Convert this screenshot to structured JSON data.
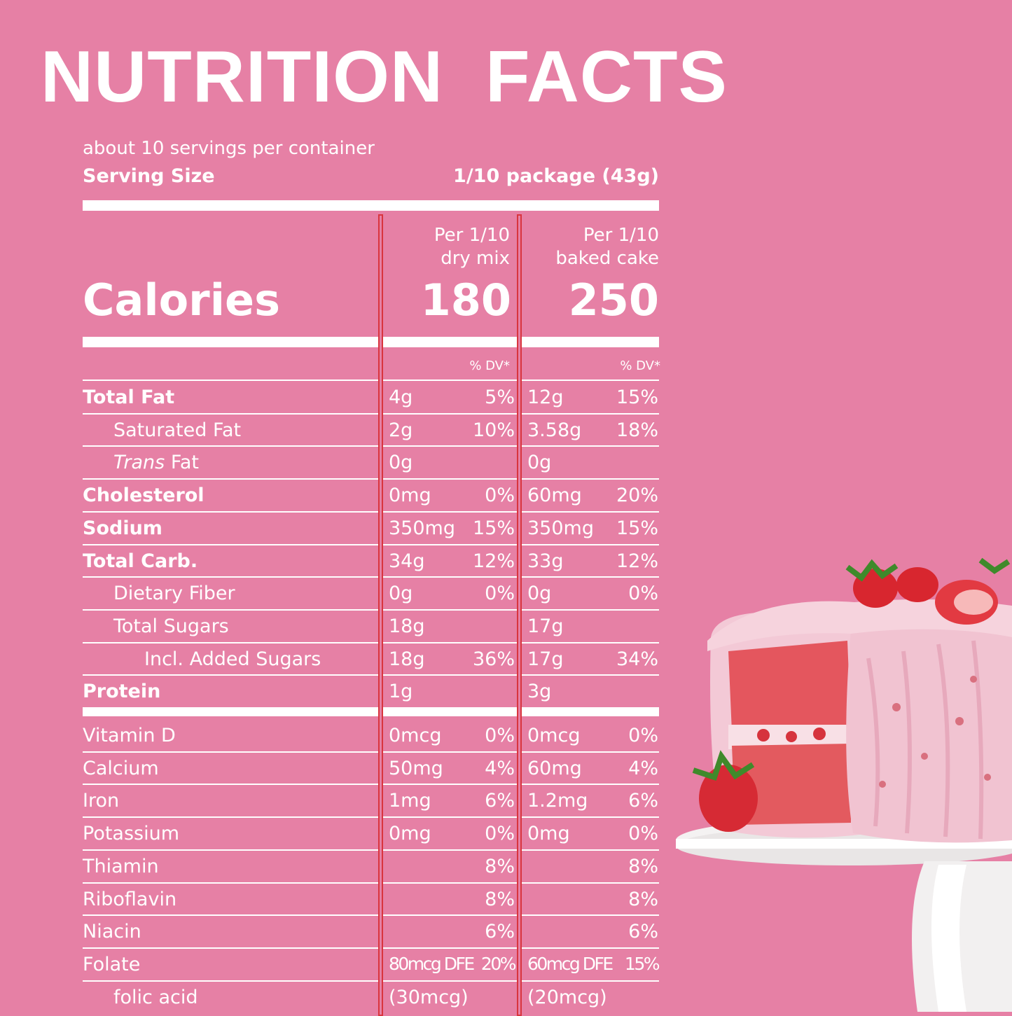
{
  "title": "NUTRITION  FACTS",
  "servings_per_container": "about 10 servings per container",
  "serving_size": {
    "label": "Serving Size",
    "value": "1/10 package (43g)"
  },
  "columns": [
    {
      "line1": "Per 1/10",
      "line2": "dry mix",
      "calories": "180"
    },
    {
      "line1": "Per 1/10",
      "line2": "baked cake",
      "calories": "250"
    }
  ],
  "calories_label": "Calories",
  "dv_header": "% DV*",
  "nutrients": [
    {
      "label": "Total Fat",
      "bold": true,
      "indent": 0,
      "v1": "4g",
      "p1": "5%",
      "v2": "12g",
      "p2": "15%"
    },
    {
      "label": "Saturated Fat",
      "bold": false,
      "indent": 1,
      "v1": "2g",
      "p1": "10%",
      "v2": "3.58g",
      "p2": "18%"
    },
    {
      "label_em": "Trans",
      "label": " Fat",
      "bold": false,
      "indent": 1,
      "v1": "0g",
      "p1": "",
      "v2": "0g",
      "p2": ""
    },
    {
      "label": "Cholesterol",
      "bold": true,
      "indent": 0,
      "v1": "0mg",
      "p1": "0%",
      "v2": "60mg",
      "p2": "20%"
    },
    {
      "label": "Sodium",
      "bold": true,
      "indent": 0,
      "v1": "350mg",
      "p1": "15%",
      "v2": "350mg",
      "p2": "15%"
    },
    {
      "label": "Total Carb.",
      "bold": true,
      "indent": 0,
      "v1": "34g",
      "p1": "12%",
      "v2": "33g",
      "p2": "12%"
    },
    {
      "label": "Dietary Fiber",
      "bold": false,
      "indent": 1,
      "v1": "0g",
      "p1": "0%",
      "v2": "0g",
      "p2": "0%"
    },
    {
      "label": "Total Sugars",
      "bold": false,
      "indent": 1,
      "v1": "18g",
      "p1": "",
      "v2": "17g",
      "p2": ""
    },
    {
      "label": "Incl. Added Sugars",
      "bold": false,
      "indent": 2,
      "v1": "18g",
      "p1": "36%",
      "v2": "17g",
      "p2": "34%"
    },
    {
      "label": "Protein",
      "bold": true,
      "indent": 0,
      "v1": "1g",
      "p1": "",
      "v2": "3g",
      "p2": ""
    }
  ],
  "vitamins": [
    {
      "label": "Vitamin D",
      "v1": "0mcg",
      "p1": "0%",
      "v2": "0mcg",
      "p2": "0%"
    },
    {
      "label": "Calcium",
      "v1": "50mg",
      "p1": "4%",
      "v2": "60mg",
      "p2": "4%"
    },
    {
      "label": "Iron",
      "v1": "1mg",
      "p1": "6%",
      "v2": "1.2mg",
      "p2": "6%"
    },
    {
      "label": "Potassium",
      "v1": "0mg",
      "p1": "0%",
      "v2": "0mg",
      "p2": "0%"
    },
    {
      "label": "Thiamin",
      "v1": "",
      "p1": "8%",
      "v2": "",
      "p2": "8%"
    },
    {
      "label": "Riboflavin",
      "v1": "",
      "p1": "8%",
      "v2": "",
      "p2": "8%"
    },
    {
      "label": "Niacin",
      "v1": "",
      "p1": "6%",
      "v2": "",
      "p2": "6%"
    },
    {
      "label": "Folate",
      "v1": "80mcg DFE",
      "p1": "20%",
      "v2": "60mcg DFE",
      "p2": "15%",
      "condensed": true
    },
    {
      "label": "folic acid",
      "indent": 1,
      "v1": "(30mcg)",
      "p1": "",
      "v2": "(20mcg)",
      "p2": ""
    }
  ],
  "colors": {
    "background": "#e680a5",
    "text": "#ffffff",
    "column_line": "#d9353e"
  },
  "image": {
    "subject": "strawberry-cake-photo"
  }
}
